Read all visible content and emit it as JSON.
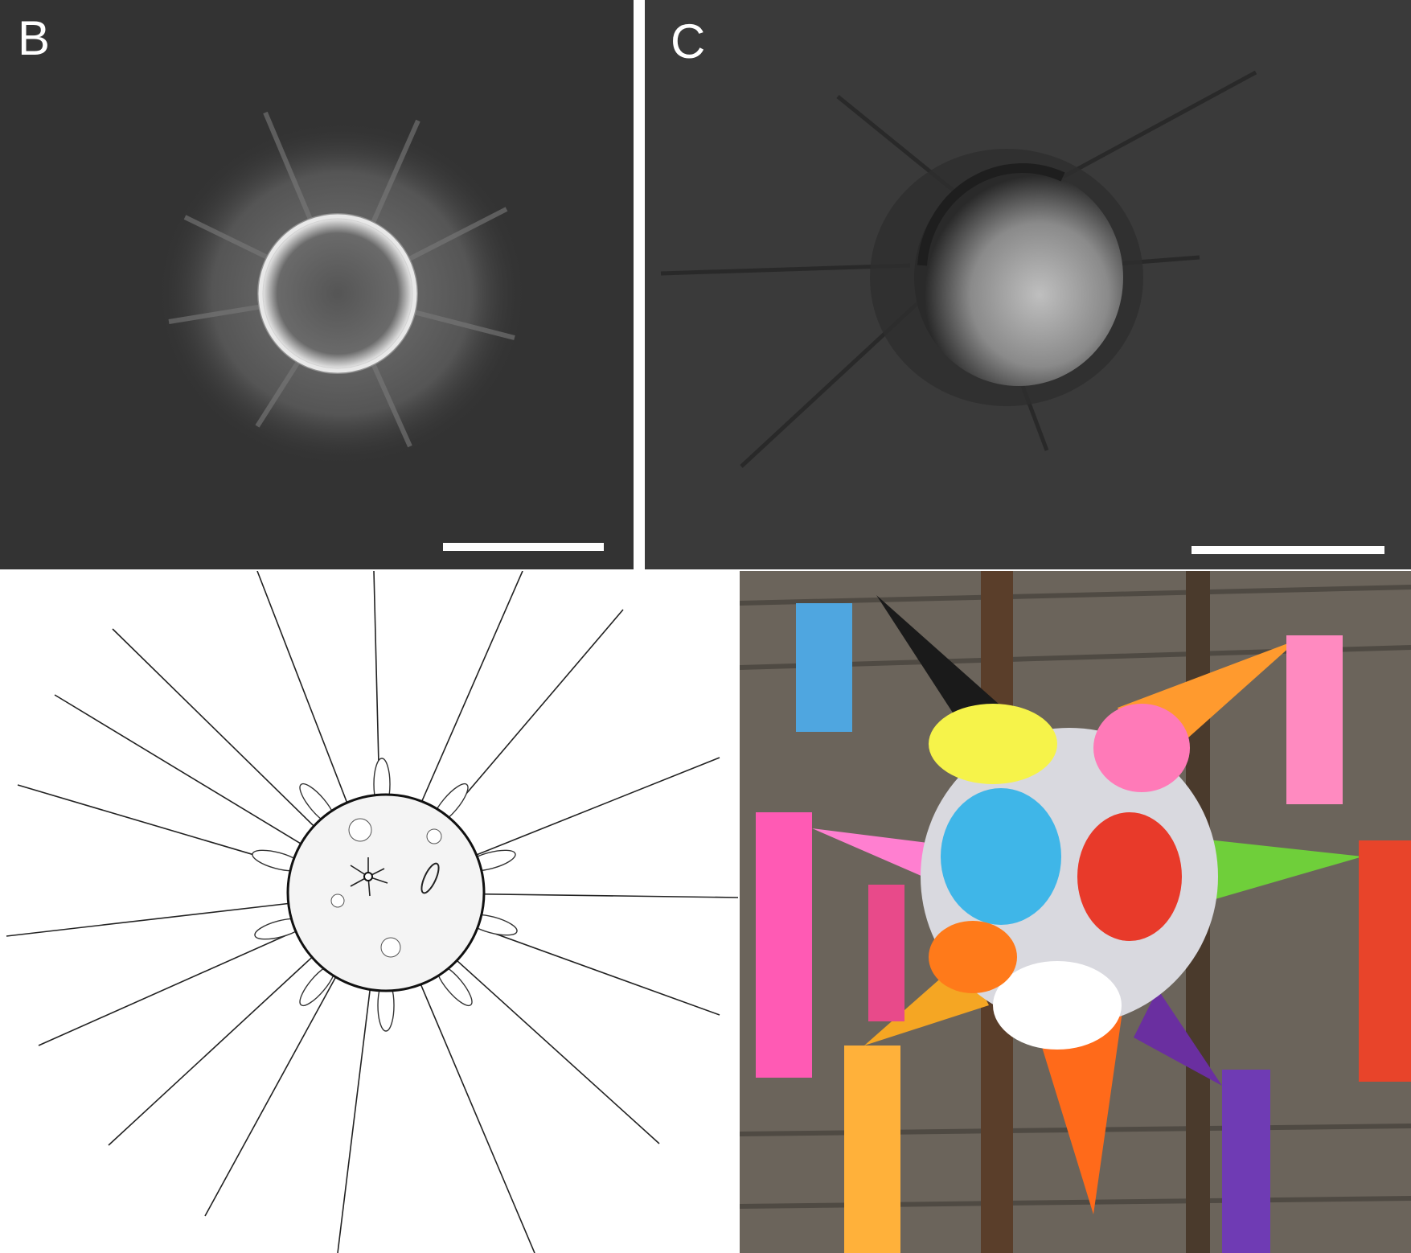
{
  "panels": {
    "b": {
      "letter": "B",
      "kind": "grayscale micrograph",
      "has_scale_bar": true
    },
    "c": {
      "letter": "C",
      "kind": "grayscale micrograph",
      "has_scale_bar": true
    },
    "d": {
      "kind": "line drawing"
    },
    "e": {
      "kind": "color photograph"
    }
  },
  "colors": {
    "micrograph_background": "#333333",
    "scale_bar": "#ffffff",
    "drawing_background": "#ffffff",
    "drawing_ink": "#111111",
    "pinata_cones": [
      "#1a1a1a",
      "#ff9a2e",
      "#ff7fd0",
      "#6fcf3a",
      "#ff6a1a",
      "#f5a623",
      "#6a2fa0"
    ],
    "pinata_fringe": [
      "#f6f34a",
      "#3fb6e8",
      "#e83a2a",
      "#ff7ab8",
      "#ffffff"
    ]
  }
}
